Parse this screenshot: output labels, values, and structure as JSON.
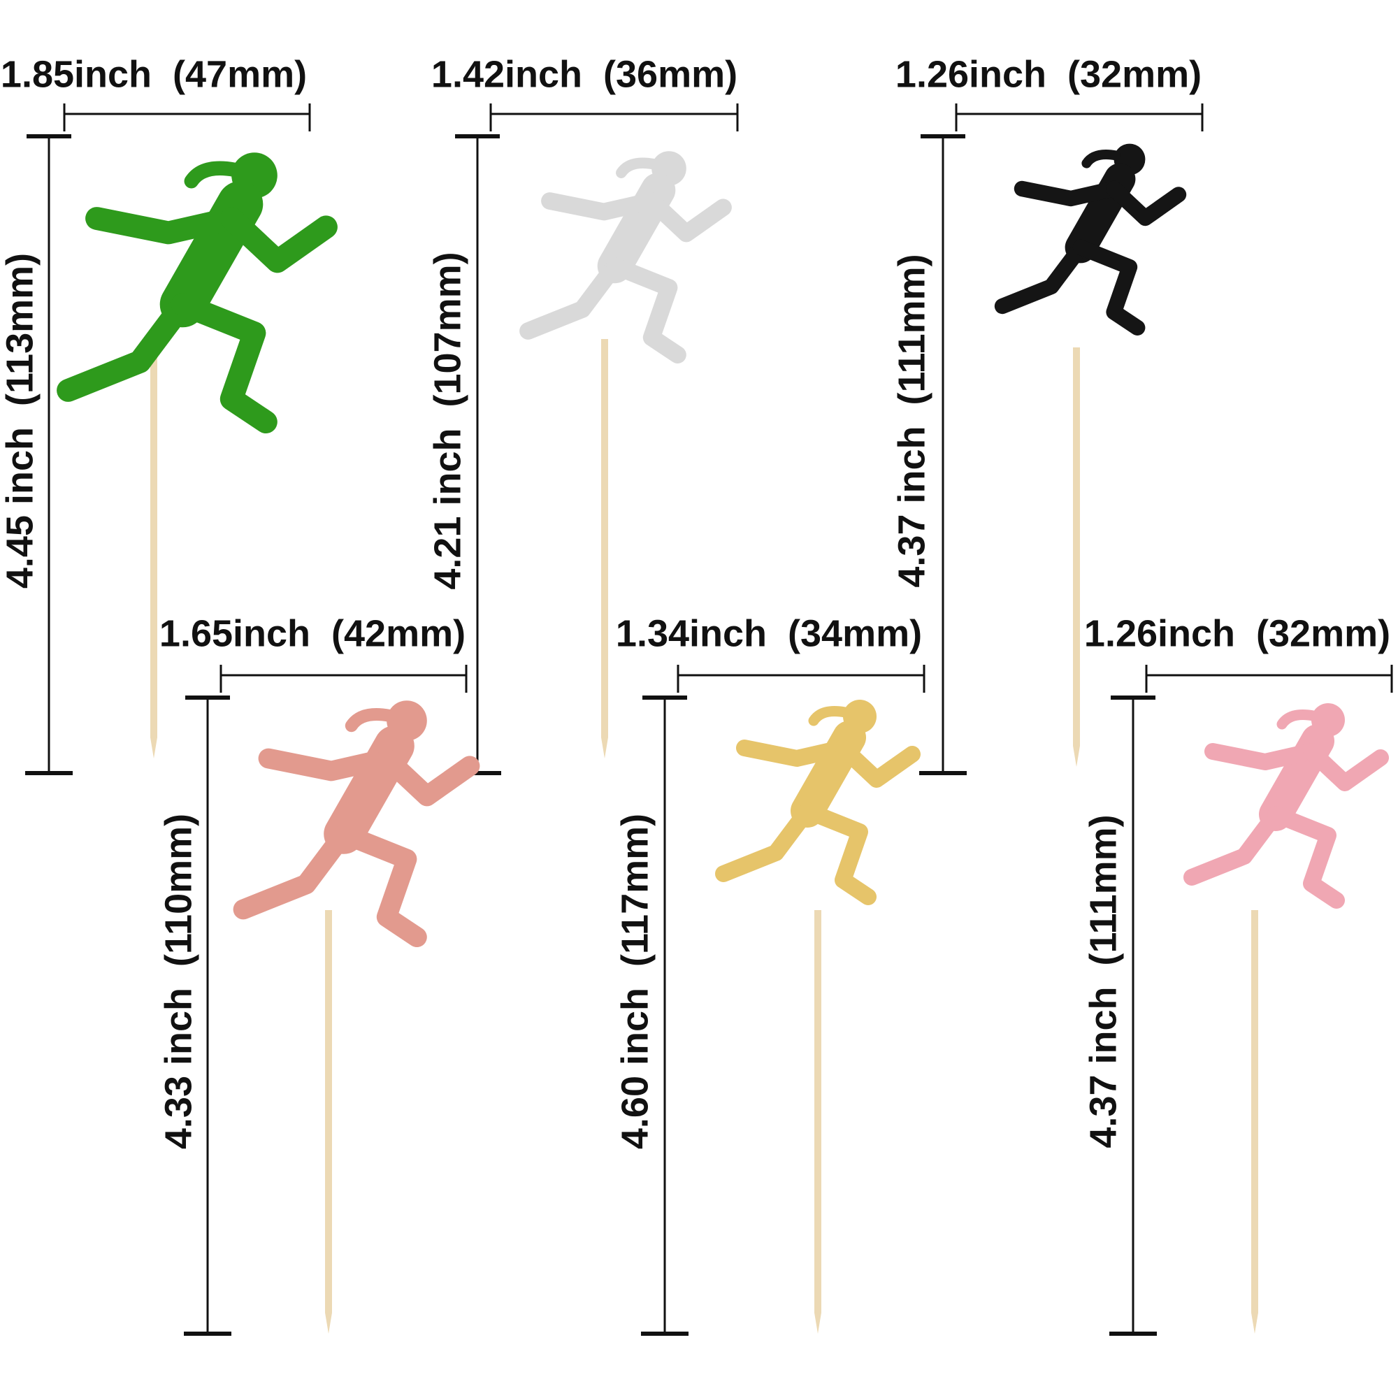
{
  "toppers": [
    {
      "width_label": "1.85inch  (47mm)",
      "height_label": "4.45 inch  (113mm)"
    },
    {
      "width_label": "1.42inch  (36mm)",
      "height_label": "4.21 inch  (107mm)"
    },
    {
      "width_label": "1.26inch  (32mm)",
      "height_label": "4.37 inch  (111mm)"
    },
    {
      "width_label": "1.65inch  (42mm)",
      "height_label": "4.33 inch  (110mm)"
    },
    {
      "width_label": "1.34inch  (34mm)",
      "height_label": "4.60 inch  (117mm)"
    },
    {
      "width_label": "1.26inch  (32mm)",
      "height_label": "4.37 inch  (111mm)"
    }
  ]
}
